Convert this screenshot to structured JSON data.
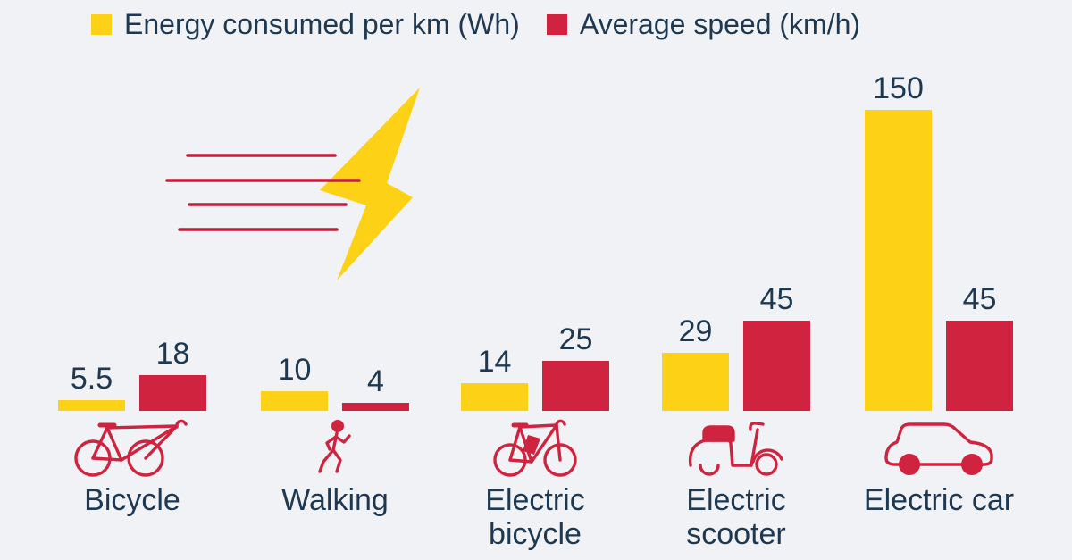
{
  "colors": {
    "background": "#f0f2f5",
    "energy": "#fcd116",
    "speed": "#d0233f",
    "text": "#1d3850",
    "speed_lines": "#c01f3c"
  },
  "legend": {
    "items": [
      {
        "label": "Energy consumed per km (Wh)",
        "color": "#fcd116"
      },
      {
        "label": "Average speed (km/h)",
        "color": "#d0233f"
      }
    ]
  },
  "chart_data": {
    "type": "bar",
    "title": "",
    "categories": [
      "Bicycle",
      "Walking",
      "Electric bicycle",
      "Electric scooter",
      "Electric car"
    ],
    "category_display": [
      "Bicycle",
      "Walking",
      "Electric\nbicycle",
      "Electric\nscooter",
      "Electric car"
    ],
    "series": [
      {
        "name": "Energy consumed per km (Wh)",
        "color": "#fcd116",
        "values": [
          5.5,
          10,
          14,
          29,
          150
        ]
      },
      {
        "name": "Average speed (km/h)",
        "color": "#d0233f",
        "values": [
          18,
          4,
          25,
          45,
          45
        ]
      }
    ],
    "value_labels_shown": true,
    "axes": "hidden",
    "grid": "off",
    "legend_position": "top",
    "ylim": [
      0,
      160
    ],
    "icons": [
      "bicycle-icon",
      "walking-person-icon",
      "electric-bicycle-icon",
      "electric-scooter-icon",
      "electric-car-icon"
    ]
  },
  "decoration": {
    "description": "yellow lightning bolt with red speed lines"
  }
}
